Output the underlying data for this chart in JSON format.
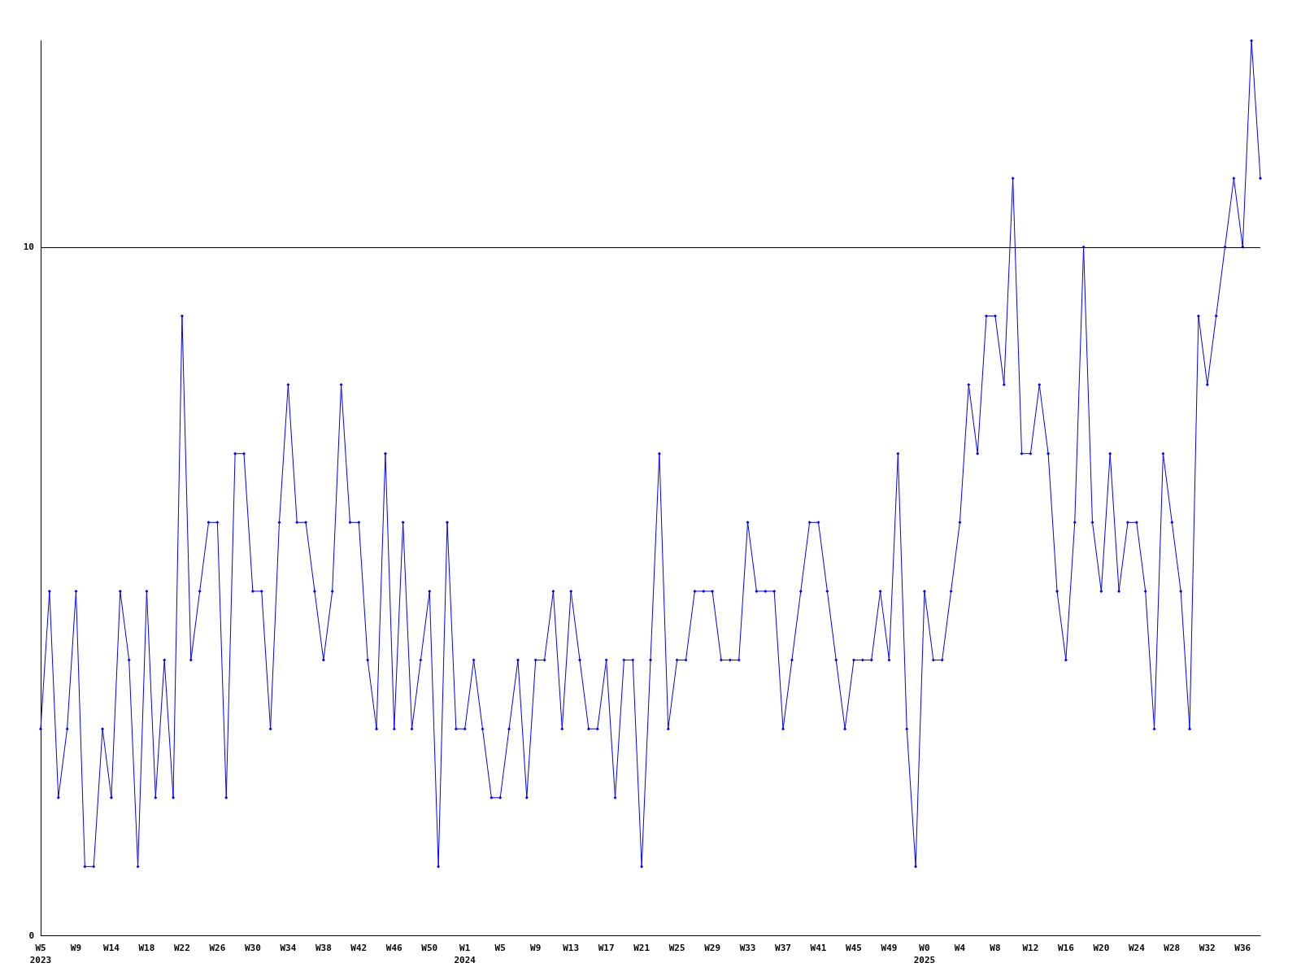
{
  "chart_data": {
    "type": "line",
    "categories": [
      "W5\n2023",
      null,
      null,
      null,
      "W9",
      null,
      null,
      null,
      "W14",
      null,
      null,
      null,
      "W18",
      null,
      null,
      null,
      "W22",
      null,
      null,
      null,
      "W26",
      null,
      null,
      null,
      "W30",
      null,
      null,
      null,
      "W34",
      null,
      null,
      null,
      "W38",
      null,
      null,
      null,
      "W42",
      null,
      null,
      null,
      "W46",
      null,
      null,
      null,
      "W50",
      null,
      null,
      null,
      "W1\n2024",
      null,
      null,
      null,
      "W5",
      null,
      null,
      null,
      "W9",
      null,
      null,
      null,
      "W13",
      null,
      null,
      null,
      "W17",
      null,
      null,
      null,
      "W21",
      null,
      null,
      null,
      "W25",
      null,
      null,
      null,
      "W29",
      null,
      null,
      null,
      "W33",
      null,
      null,
      null,
      "W37",
      null,
      null,
      null,
      "W41",
      null,
      null,
      null,
      "W45",
      null,
      null,
      null,
      "W49",
      null,
      null,
      null,
      "W0\n2025",
      null,
      null,
      null,
      "W4",
      null,
      null,
      null,
      "W8",
      null,
      null,
      null,
      "W12",
      null,
      null,
      null,
      "W16",
      null,
      null,
      null,
      "W20",
      null,
      null,
      null,
      "W24",
      null,
      null,
      null,
      "W28",
      null,
      null,
      null,
      "W32",
      null,
      null,
      null,
      "W36",
      null,
      null
    ],
    "series": [
      {
        "color": "#0000ff",
        "values": [
          3,
          5,
          2,
          3,
          5,
          1,
          1,
          3,
          2,
          5,
          4,
          1,
          5,
          2,
          4,
          2,
          9,
          4,
          5,
          6,
          6,
          2,
          7,
          7,
          5,
          5,
          3,
          6,
          8,
          6,
          6,
          5,
          4,
          5,
          8,
          6,
          6,
          4,
          3,
          7,
          3,
          6,
          3,
          4,
          5,
          1,
          6,
          3,
          3,
          4,
          3,
          2,
          2,
          3,
          4,
          2,
          4,
          4,
          5,
          3,
          5,
          4,
          3,
          3,
          4,
          2,
          4,
          4,
          1,
          4,
          7,
          3,
          4,
          4,
          5,
          5,
          5,
          4,
          4,
          4,
          6,
          5,
          5,
          5,
          3,
          4,
          5,
          6,
          6,
          5,
          4,
          3,
          4,
          4,
          4,
          5,
          4,
          7,
          3,
          1,
          5,
          4,
          4,
          5,
          6,
          8,
          7,
          9,
          9,
          8,
          11,
          7,
          7,
          8,
          7,
          5,
          4,
          6,
          10,
          6,
          5,
          7,
          5,
          6,
          6,
          5,
          3,
          7,
          6,
          5,
          3,
          9,
          8,
          9,
          10,
          11,
          10,
          13,
          11
        ]
      }
    ],
    "ylim": [
      0,
      13
    ],
    "yticks": [
      0,
      10
    ],
    "grid": "y",
    "marker": "diamond",
    "line_style": "solid"
  }
}
